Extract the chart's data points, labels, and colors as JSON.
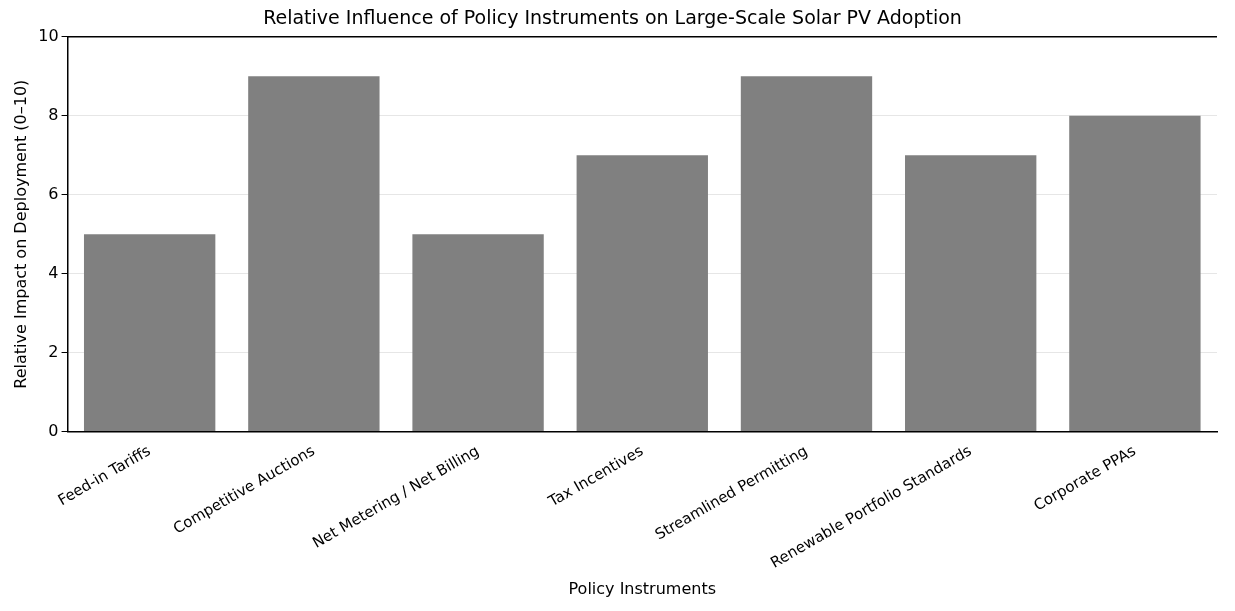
{
  "chart_data": {
    "type": "bar",
    "title": "Relative Influence of Policy Instruments on Large-Scale Solar PV Adoption",
    "xlabel": "Policy Instruments",
    "ylabel": "Relative Impact on Deployment (0–10)",
    "categories": [
      "Feed-in Tariffs",
      "Competitive Auctions",
      "Net Metering / Net Billing",
      "Tax Incentives",
      "Streamlined Permitting",
      "Renewable Portfolio Standards",
      "Corporate PPAs"
    ],
    "values": [
      5,
      9,
      5,
      7,
      9,
      7,
      8
    ],
    "color": "#808080",
    "ylim": [
      0,
      10
    ],
    "yticks": [
      0,
      2,
      4,
      6,
      8,
      10
    ],
    "grid": "y",
    "legend": false
  }
}
